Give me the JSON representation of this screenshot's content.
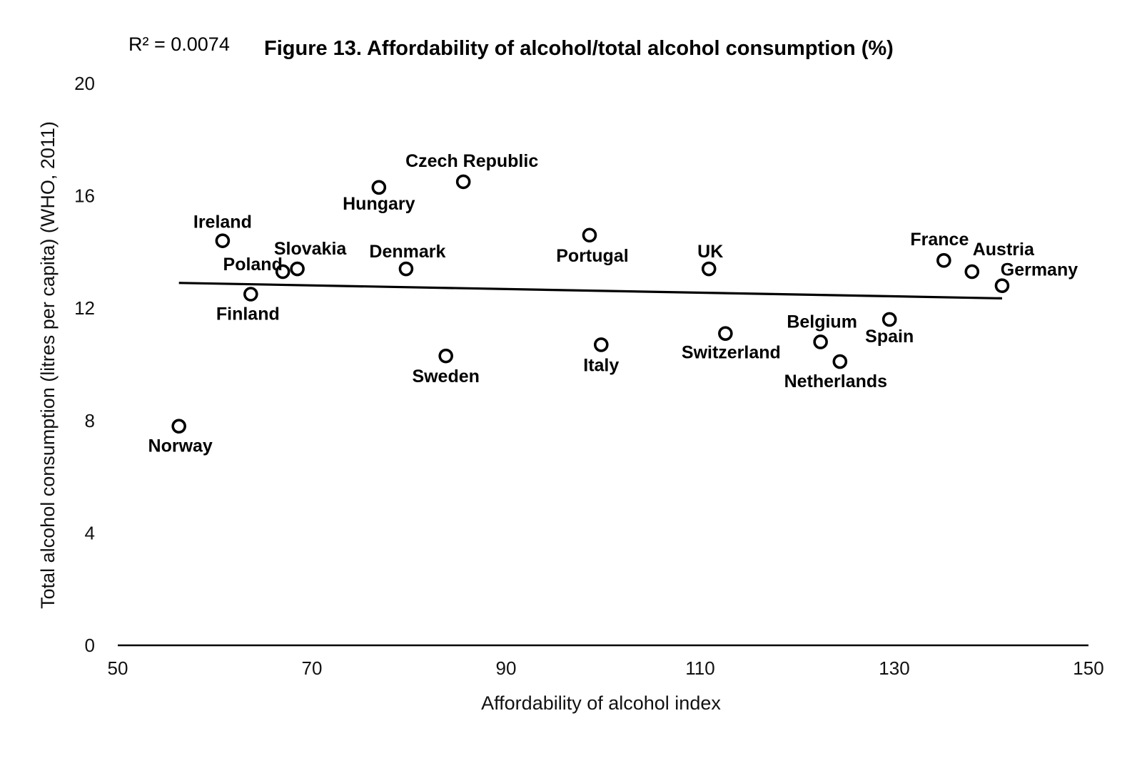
{
  "chart_data": {
    "type": "scatter",
    "title": "Figure 13. Affordability of alcohol/total alcohol consumption (%)",
    "annotation": "R² = 0.0074",
    "xlabel": "Affordability of alcohol index",
    "ylabel": "Total alcohol consumption (litres per capita) (WHO, 2011)",
    "xlim": [
      50,
      150
    ],
    "ylim": [
      0,
      20
    ],
    "x_ticks": [
      "50",
      "70",
      "90",
      "110",
      "130",
      "150"
    ],
    "y_ticks": [
      "0",
      "4",
      "8",
      "12",
      "16",
      "20"
    ],
    "grid": false,
    "trendline": {
      "x": [
        56.3,
        141.1
      ],
      "y": [
        12.9,
        12.35
      ]
    },
    "points": [
      {
        "label": "Norway",
        "x": 56.3,
        "y": 7.8
      },
      {
        "label": "Ireland",
        "x": 60.8,
        "y": 14.4
      },
      {
        "label": "Finland",
        "x": 63.7,
        "y": 12.5
      },
      {
        "label": "Poland",
        "x": 67.0,
        "y": 13.3
      },
      {
        "label": "Slovakia",
        "x": 68.5,
        "y": 13.4
      },
      {
        "label": "Hungary",
        "x": 76.9,
        "y": 16.3
      },
      {
        "label": "Denmark",
        "x": 79.7,
        "y": 13.4
      },
      {
        "label": "Sweden",
        "x": 83.8,
        "y": 10.3
      },
      {
        "label": "Czech Republic",
        "x": 85.6,
        "y": 16.5
      },
      {
        "label": "Portugal",
        "x": 98.6,
        "y": 14.6
      },
      {
        "label": "Italy",
        "x": 99.8,
        "y": 10.7
      },
      {
        "label": "UK",
        "x": 110.9,
        "y": 13.4
      },
      {
        "label": "Switzerland",
        "x": 112.6,
        "y": 11.1
      },
      {
        "label": "Belgium",
        "x": 122.4,
        "y": 10.8
      },
      {
        "label": "Netherlands",
        "x": 124.4,
        "y": 10.1
      },
      {
        "label": "Spain",
        "x": 129.5,
        "y": 11.6
      },
      {
        "label": "France",
        "x": 135.1,
        "y": 13.7
      },
      {
        "label": "Austria",
        "x": 138.0,
        "y": 13.3
      },
      {
        "label": "Germany",
        "x": 141.1,
        "y": 12.8
      }
    ]
  }
}
